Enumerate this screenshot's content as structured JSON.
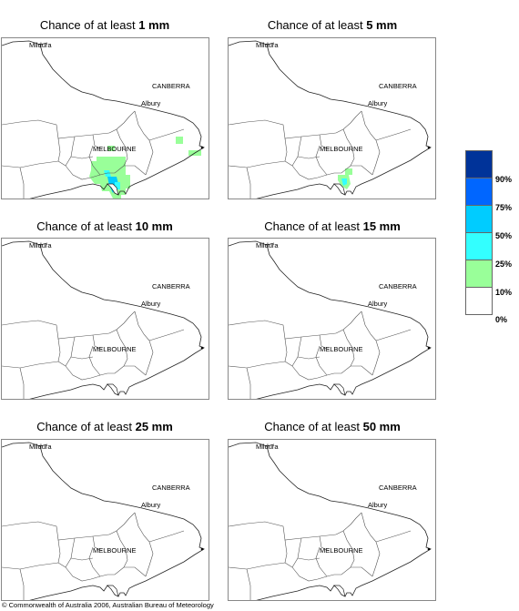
{
  "panels": [
    {
      "prefix": "Chance of at least ",
      "amount": "1 mm"
    },
    {
      "prefix": "Chance of at least ",
      "amount": "5 mm"
    },
    {
      "prefix": "Chance of at least ",
      "amount": "10 mm"
    },
    {
      "prefix": "Chance of at least ",
      "amount": "15 mm"
    },
    {
      "prefix": "Chance of at least ",
      "amount": "25 mm"
    },
    {
      "prefix": "Chance of at least ",
      "amount": "50 mm"
    }
  ],
  "map_labels": {
    "mildura": "Mildura",
    "canberra": "CANBERRA",
    "albury": "Albury",
    "melbourne": "MELBOURNE"
  },
  "legend": {
    "labels": [
      "90%",
      "75%",
      "50%",
      "25%",
      "10%",
      "0%"
    ],
    "colors": [
      "#003399",
      "#0066ff",
      "#00ccff",
      "#33ffff",
      "#99ff99",
      "#ffffff"
    ]
  },
  "copyright": "© Commonwealth of Australia 2006, Australian Bureau of Meteorology"
}
